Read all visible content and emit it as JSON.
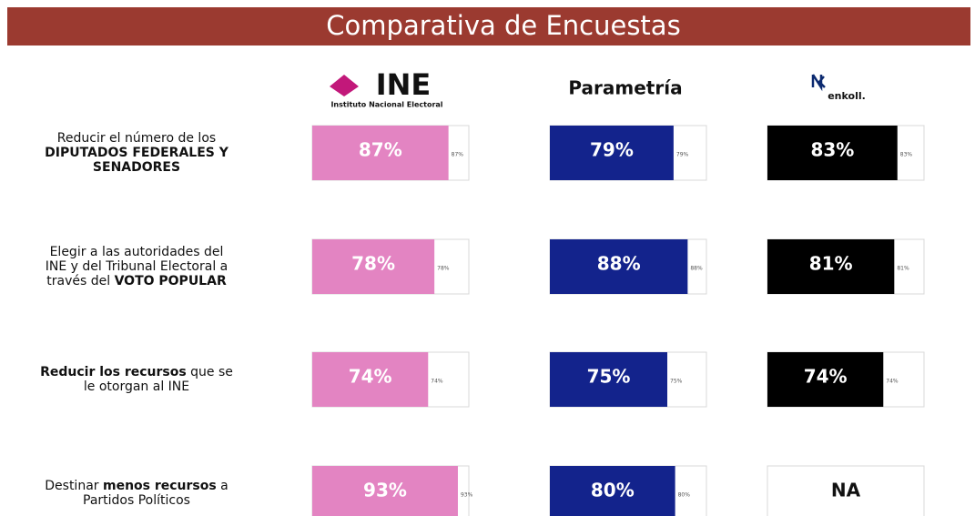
{
  "chart_data": {
    "type": "bar",
    "title": "Comparativa de Encuestas",
    "xlim": [
      0,
      100
    ],
    "categories": [
      [
        [
          {
            "t": "Reducir el número de los",
            "b": false
          }
        ],
        [
          {
            "t": "DIPUTADOS FEDERALES Y",
            "b": true
          }
        ],
        [
          {
            "t": "SENADORES",
            "b": true
          }
        ]
      ],
      [
        [
          {
            "t": "Elegir a las autoridades del",
            "b": false
          }
        ],
        [
          {
            "t": "INE y del Tribunal Electoral a",
            "b": false
          }
        ],
        [
          {
            "t": "través del ",
            "b": false
          },
          {
            "t": "VOTO POPULAR",
            "b": true
          }
        ]
      ],
      [
        [
          {
            "t": "Reducir los recursos",
            "b": true
          },
          {
            "t": " que se",
            "b": false
          }
        ],
        [
          {
            "t": "le otorgan al INE",
            "b": false
          }
        ]
      ],
      [
        [
          {
            "t": "Destinar ",
            "b": false
          },
          {
            "t": "menos recursos",
            "b": true
          },
          {
            "t": " a",
            "b": false
          }
        ],
        [
          {
            "t": "Partidos Políticos",
            "b": false
          }
        ]
      ]
    ],
    "series": [
      {
        "name": "INE",
        "subtitle": "Instituto Nacional Electoral",
        "color": "#e384c2",
        "values": [
          87,
          78,
          74,
          93
        ],
        "value_labels": [
          "87%",
          "78%",
          "74%",
          "93%"
        ]
      },
      {
        "name": "Parametría",
        "color": "#13238c",
        "values": [
          79,
          88,
          75,
          80
        ],
        "value_labels": [
          "79%",
          "88%",
          "75%",
          "80%"
        ]
      },
      {
        "name": "enkoll.",
        "color": "#000000",
        "values": [
          83,
          81,
          74,
          null
        ],
        "value_labels": [
          "83%",
          "81%",
          "74%",
          "NA"
        ]
      }
    ]
  }
}
